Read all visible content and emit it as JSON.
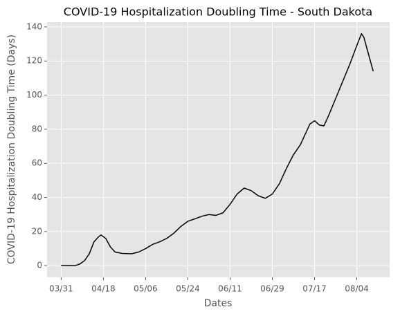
{
  "chart_data": {
    "type": "line",
    "title": "COVID-19 Hospitalization Doubling Time - South Dakota",
    "x_label": "Dates",
    "y_label": "COVID-19 Hospitalization Doubling Time (Days)",
    "x": [
      "03/31",
      "04/03",
      "04/06",
      "04/08",
      "04/10",
      "04/12",
      "04/14",
      "04/16",
      "04/17",
      "04/19",
      "04/21",
      "04/23",
      "04/26",
      "04/30",
      "05/03",
      "05/06",
      "05/09",
      "05/12",
      "05/15",
      "05/18",
      "05/21",
      "05/24",
      "05/27",
      "05/30",
      "06/02",
      "06/05",
      "06/08",
      "06/11",
      "06/14",
      "06/17",
      "06/20",
      "06/23",
      "06/26",
      "06/29",
      "07/02",
      "07/05",
      "07/08",
      "07/11",
      "07/13",
      "07/15",
      "07/17",
      "07/19",
      "07/21",
      "07/23",
      "07/26",
      "07/29",
      "08/01",
      "08/04",
      "08/06",
      "08/07",
      "08/09",
      "08/11"
    ],
    "series": [
      {
        "color": "#000000",
        "values": [
          0,
          0,
          0,
          1,
          3,
          7,
          14,
          17,
          18,
          16,
          11,
          8,
          7.2,
          7,
          8,
          10,
          12.5,
          14,
          16,
          19,
          23,
          26,
          27.5,
          29,
          30,
          29.5,
          31,
          36,
          42,
          45.5,
          44,
          41,
          39.5,
          42,
          48,
          57,
          65,
          71,
          77,
          83,
          85,
          82.5,
          82,
          88,
          98,
          108,
          118,
          129,
          136,
          134,
          124,
          114
        ]
      }
    ],
    "xlim": [
      "03/25",
      "08/18"
    ],
    "xticks": [
      "03/31",
      "04/18",
      "05/06",
      "05/24",
      "06/11",
      "06/29",
      "07/17",
      "08/04"
    ],
    "ylim": [
      -6.8,
      142.8
    ],
    "yticks": [
      0,
      20,
      40,
      60,
      80,
      100,
      120,
      140
    ],
    "grid": true
  }
}
